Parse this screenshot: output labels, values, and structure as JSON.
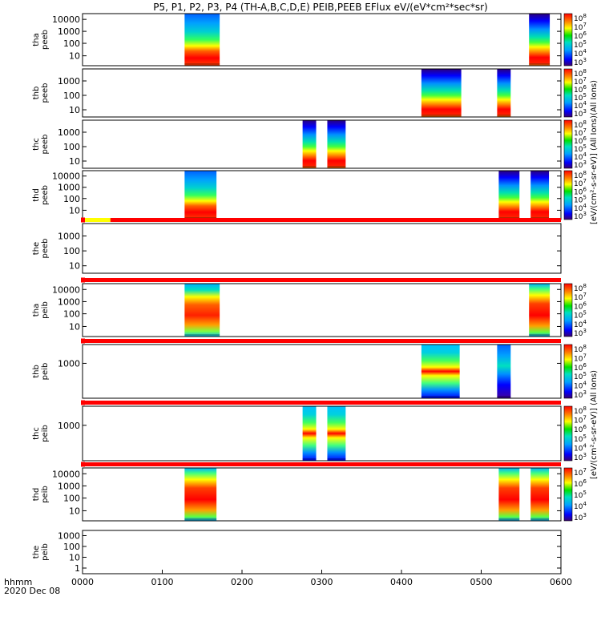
{
  "chart_data": {
    "type": "heatmap",
    "title": "P5, P1, P2, P3, P4 (TH-A,B,C,D,E) PEIB,PEEB EFlux eV/(eV*cm²*sec*sr)",
    "x_axis": {
      "range": [
        0,
        6
      ],
      "units": "hours",
      "tick_labels": [
        "0000",
        "0100",
        "0200",
        "0300",
        "0400",
        "0500",
        "0600"
      ],
      "label_line1": "hhmm",
      "label_line2": "2020 Dec 08"
    },
    "colorbar_label_electron": "[eV/(cm²-s-sr-eV)] (All Ions)(All Ions)",
    "colorbar_label_ion": "[eV/(cm²-s-sr-eV)] (All Ions)",
    "panels": [
      {
        "id": "tha-peeb",
        "ylabel": [
          "tha",
          "peeb"
        ],
        "yticks": [
          "10000",
          "1000",
          "100",
          "10"
        ],
        "ytick_fracs": [
          0.11,
          0.34,
          0.57,
          0.81
        ],
        "scheme": "electron",
        "intervals": [
          [
            1.28,
            1.72,
            "burst"
          ],
          [
            5.6,
            5.86,
            "normal"
          ]
        ],
        "colorbar": {
          "ticks": [
            "10^8",
            "10^7",
            "10^6",
            "10^5",
            "10^4",
            "10^3"
          ]
        }
      },
      {
        "id": "thb-peeb",
        "ylabel": [
          "thb",
          "peeb"
        ],
        "yticks": [
          "1000",
          "100",
          "10"
        ],
        "ytick_fracs": [
          0.25,
          0.55,
          0.85
        ],
        "scheme": "electron",
        "intervals": [
          [
            4.25,
            4.75,
            "normal"
          ],
          [
            5.2,
            5.37,
            "normal"
          ]
        ],
        "colorbar": {
          "ticks": [
            "10^8",
            "10^7",
            "10^6",
            "10^5",
            "10^4",
            "10^3"
          ]
        }
      },
      {
        "id": "thc-peeb",
        "ylabel": [
          "thc",
          "peeb"
        ],
        "yticks": [
          "1000",
          "100",
          "10"
        ],
        "ytick_fracs": [
          0.25,
          0.55,
          0.85
        ],
        "scheme": "electron",
        "intervals": [
          [
            2.76,
            2.93,
            "normal"
          ],
          [
            3.07,
            3.3,
            "normal"
          ]
        ],
        "colorbar": {
          "ticks": [
            "10^8",
            "10^7",
            "10^6",
            "10^5",
            "10^4",
            "10^3"
          ]
        }
      },
      {
        "id": "thd-peeb",
        "ylabel": [
          "thd",
          "peeb"
        ],
        "yticks": [
          "10000",
          "1000",
          "100",
          "10"
        ],
        "ytick_fracs": [
          0.11,
          0.34,
          0.57,
          0.81
        ],
        "scheme": "electron",
        "intervals": [
          [
            1.28,
            1.68,
            "burst"
          ],
          [
            5.22,
            5.48,
            "normal"
          ],
          [
            5.62,
            5.85,
            "normal"
          ]
        ],
        "colorbar": {
          "ticks": [
            "10^8",
            "10^7",
            "10^6",
            "10^5",
            "10^4",
            "10^3"
          ]
        }
      },
      {
        "id": "the-peeb",
        "ylabel": [
          "the",
          "peeb"
        ],
        "yticks": [
          "1000",
          "100",
          "10"
        ],
        "ytick_fracs": [
          0.25,
          0.55,
          0.85
        ],
        "scheme": "none",
        "intervals": [],
        "colorbar": null
      },
      {
        "id": "tha-peib",
        "ylabel": [
          "tha",
          "peib"
        ],
        "yticks": [
          "10000",
          "1000",
          "100",
          "10"
        ],
        "ytick_fracs": [
          0.11,
          0.34,
          0.57,
          0.81
        ],
        "scheme": "ion",
        "intervals": [
          [
            1.28,
            1.72,
            "ionburst"
          ],
          [
            5.6,
            5.86,
            "ionwide"
          ]
        ],
        "colorbar": {
          "ticks": [
            "10^8",
            "10^7",
            "10^6",
            "10^5",
            "10^4",
            "10^3"
          ]
        }
      },
      {
        "id": "thb-peib",
        "ylabel": [
          "thb",
          "peib"
        ],
        "yticks": [
          "1000"
        ],
        "ytick_fracs": [
          0.35
        ],
        "scheme": "ion",
        "intervals": [
          [
            4.25,
            4.73,
            "ionnarrow"
          ],
          [
            5.2,
            5.37,
            "ioncool"
          ]
        ],
        "colorbar": {
          "ticks": [
            "10^8",
            "10^7",
            "10^6",
            "10^5",
            "10^4",
            "10^3"
          ]
        }
      },
      {
        "id": "thc-peib",
        "ylabel": [
          "thc",
          "peib"
        ],
        "yticks": [
          "1000"
        ],
        "ytick_fracs": [
          0.35
        ],
        "scheme": "ion",
        "intervals": [
          [
            2.76,
            2.93,
            "ionnarrow"
          ],
          [
            3.07,
            3.3,
            "ionnarrow"
          ]
        ],
        "colorbar": {
          "ticks": [
            "10^8",
            "10^7",
            "10^6",
            "10^5",
            "10^4",
            "10^3"
          ]
        }
      },
      {
        "id": "thd-peib",
        "ylabel": [
          "thd",
          "peib"
        ],
        "yticks": [
          "10000",
          "1000",
          "100",
          "10"
        ],
        "ytick_fracs": [
          0.11,
          0.34,
          0.57,
          0.81
        ],
        "scheme": "ion",
        "intervals": [
          [
            1.28,
            1.68,
            "ionwide"
          ],
          [
            5.22,
            5.48,
            "ionwide"
          ],
          [
            5.62,
            5.85,
            "ionwide"
          ]
        ],
        "colorbar": {
          "ticks": [
            "10^7",
            "10^6",
            "10^5",
            "10^4",
            "10^3"
          ]
        }
      },
      {
        "id": "the-peib",
        "ylabel": [
          "the",
          "peib"
        ],
        "yticks": [
          "1000",
          "100",
          "10",
          "1"
        ],
        "ytick_fracs": [
          0.12,
          0.37,
          0.62,
          0.87
        ],
        "scheme": "none",
        "intervals": [],
        "colorbar": null
      }
    ],
    "flag_bars": [
      {
        "after_panel": 4,
        "segments": [
          [
            0,
            0.35,
            "#ffff00"
          ],
          [
            0.35,
            6,
            "#ff0000"
          ]
        ]
      },
      {
        "after_panel": 5,
        "segments": [
          [
            0,
            6,
            "#ff0000"
          ]
        ]
      },
      {
        "after_panel": 6,
        "segments": [
          [
            0,
            6,
            "#ff0000"
          ]
        ]
      },
      {
        "after_panel": 7,
        "segments": [
          [
            0,
            6,
            "#ff0000"
          ]
        ]
      },
      {
        "after_panel": 8,
        "segments": [
          [
            0,
            6,
            "#ff0000"
          ]
        ]
      }
    ]
  }
}
